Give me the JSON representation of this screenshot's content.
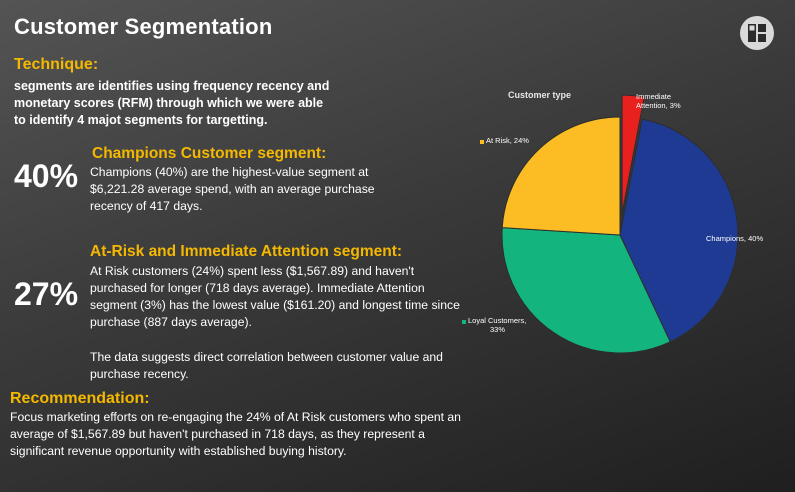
{
  "page": {
    "title": "Customer Segmentation",
    "logo": "logo-icon"
  },
  "technique": {
    "heading": "Technique:",
    "body": "segments are identifies using frequency recency and monetary scores (RFM) through which we were able to identify 4 majot segments for targetting."
  },
  "champions": {
    "percent": "40%",
    "heading": "Champions Customer segment:",
    "body": "Champions (40%) are the highest-value segment at $6,221.28 average spend, with an average purchase recency of 417 days."
  },
  "at_risk": {
    "percent": "27%",
    "heading": "At-Risk and Immediate Attention segment:",
    "body": "At Risk customers (24%) spent less ($1,567.89) and haven't purchased for longer (718 days average). Immediate Attention segment (3%) has the lowest value ($161.20) and longest time since purchase (887 days average).",
    "correlation": "The data suggests direct correlation between customer value and purchase recency."
  },
  "recommendation": {
    "heading": "Recommendation:",
    "body": "Focus marketing efforts on re-engaging the 24% of At Risk customers who spent an average of $1,567.89 but haven't purchased in 718 days, as they represent a significant revenue opportunity with established buying history."
  },
  "chart_data": {
    "type": "pie",
    "title": "Customer type",
    "slices": [
      {
        "name": "Champions",
        "value": 40,
        "label": "Champions, 40%",
        "color": "#1f3a93",
        "exploded": false
      },
      {
        "name": "Loyal Customers",
        "value": 33,
        "label_lines": [
          "Loyal Customers,",
          "33%"
        ],
        "color": "#13b47d",
        "exploded": false
      },
      {
        "name": "At Risk",
        "value": 24,
        "label": "At Risk, 24%",
        "color": "#fbbd23",
        "exploded": false
      },
      {
        "name": "Immediate Attention",
        "value": 3,
        "label_lines": [
          "Immediate",
          "Attention, 3%"
        ],
        "color": "#e8211f",
        "exploded": true
      }
    ]
  }
}
